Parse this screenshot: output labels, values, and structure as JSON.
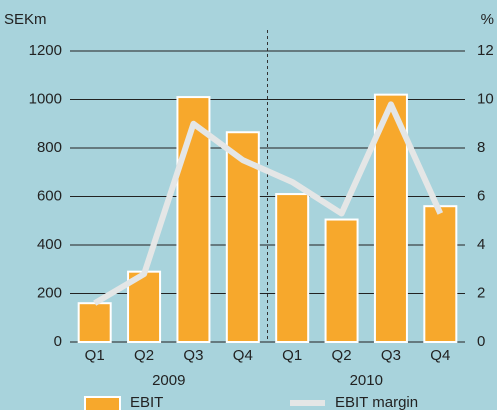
{
  "chart_data": {
    "type": "bar",
    "categories": [
      "Q1",
      "Q2",
      "Q3",
      "Q4",
      "Q1",
      "Q2",
      "Q3",
      "Q4"
    ],
    "groups": [
      {
        "label": "2009",
        "size": 4
      },
      {
        "label": "2010",
        "size": 4
      }
    ],
    "y_label": "SEKm",
    "y2_label": "%",
    "series": [
      {
        "name": "EBIT",
        "type": "bar",
        "color": "#f7a82c",
        "values": [
          160,
          290,
          1010,
          865,
          610,
          505,
          1020,
          560
        ]
      },
      {
        "name": "EBIT margin",
        "type": "line",
        "axis": "y2",
        "color": "#e4e6e6",
        "values": [
          1.6,
          2.8,
          9.0,
          7.5,
          6.6,
          5.3,
          9.8,
          5.3
        ]
      }
    ],
    "ylim": [
      0,
      1200
    ],
    "yticks": [
      0,
      200,
      400,
      600,
      800,
      1000,
      1200
    ],
    "y2lim": [
      0,
      12
    ],
    "y2ticks": [
      0,
      2,
      4,
      6,
      8,
      10,
      12
    ],
    "grid": true,
    "legend": "bottom"
  }
}
